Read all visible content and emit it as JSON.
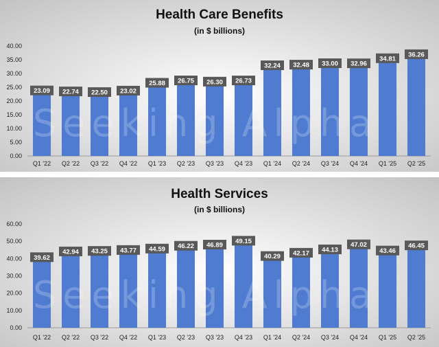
{
  "watermark": "Seeking Alpha",
  "chart_data": [
    {
      "type": "bar",
      "title": "Health Care Benefits",
      "subtitle": "(in $ billions)",
      "categories": [
        "Q1 '22",
        "Q2 '22",
        "Q3 '22",
        "Q4 '22",
        "Q1 '23",
        "Q2 '23",
        "Q3 '23",
        "Q4 '23",
        "Q1 '24",
        "Q2 '24",
        "Q3 '24",
        "Q4 '24",
        "Q1 '25",
        "Q2 '25"
      ],
      "values": [
        23.09,
        22.74,
        22.5,
        23.02,
        25.88,
        26.75,
        26.3,
        26.73,
        32.24,
        32.48,
        33.0,
        32.96,
        34.81,
        36.26
      ],
      "data_labels": [
        "23.09",
        "22.74",
        "22.50",
        "23.02",
        "25.88",
        "26.75",
        "26.30",
        "26.73",
        "32.24",
        "32.48",
        "33.00",
        "32.96",
        "34.81",
        "36.26"
      ],
      "yticks": [
        "0.00",
        "5.00",
        "10.00",
        "15.00",
        "20.00",
        "25.00",
        "30.00",
        "35.00",
        "40.00"
      ],
      "ylim": [
        0,
        40
      ],
      "grid": false,
      "colors": {
        "bar": "#4f7bd0",
        "label_bg": "#595959"
      }
    },
    {
      "type": "bar",
      "title": "Health Services",
      "subtitle": "(in $ billions)",
      "categories": [
        "Q1 '22",
        "Q2 '22",
        "Q3 '22",
        "Q4 '22",
        "Q1 '23",
        "Q2 '23",
        "Q3 '23",
        "Q4 '23",
        "Q1 '24",
        "Q2 '24",
        "Q3 '24",
        "Q4 '24",
        "Q1 '25",
        "Q2 '25"
      ],
      "values": [
        39.62,
        42.94,
        43.25,
        43.77,
        44.59,
        46.22,
        46.89,
        49.15,
        40.29,
        42.17,
        44.13,
        47.02,
        43.46,
        46.45
      ],
      "data_labels": [
        "39.62",
        "42.94",
        "43.25",
        "43.77",
        "44.59",
        "46.22",
        "46.89",
        "49.15",
        "40.29",
        "42.17",
        "44.13",
        "47.02",
        "43.46",
        "46.45"
      ],
      "yticks": [
        "0.00",
        "10.00",
        "20.00",
        "30.00",
        "40.00",
        "50.00",
        "60.00"
      ],
      "ylim": [
        0,
        60
      ],
      "grid": false,
      "colors": {
        "bar": "#4f7bd0",
        "label_bg": "#595959"
      }
    }
  ]
}
